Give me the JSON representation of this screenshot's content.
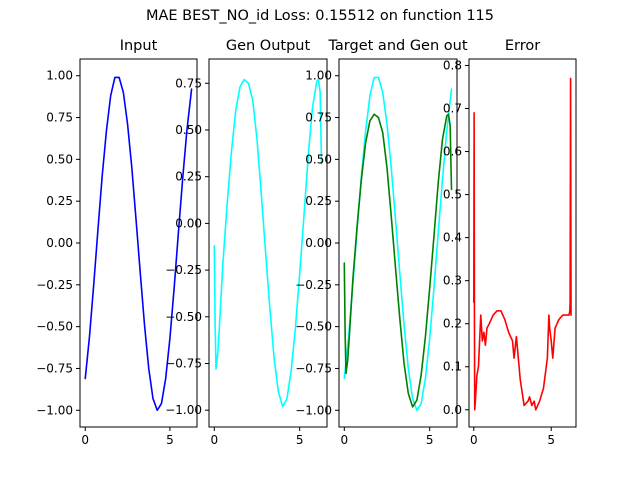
{
  "figure": {
    "suptitle": "MAE BEST_NO_id Loss: 0.15512 on function 115"
  },
  "colors": {
    "input": "#0000ff",
    "gen": "#00ffff",
    "target": "#008000",
    "error": "#ff0000",
    "axes": "#000000",
    "background": "#ffffff"
  },
  "chart_data": [
    {
      "type": "line",
      "title": "Input",
      "xlabel": "",
      "ylabel": "",
      "xlim": [
        -0.31,
        6.6
      ],
      "ylim": [
        -1.1,
        1.1
      ],
      "xticks": [
        0,
        5
      ],
      "xtick_labels": [
        "0",
        "5"
      ],
      "yticks": [
        -1.0,
        -0.75,
        -0.5,
        -0.25,
        0.0,
        0.25,
        0.5,
        0.75,
        1.0
      ],
      "ytick_labels": [
        "−1.00",
        "−0.75",
        "−0.50",
        "−0.25",
        "0.00",
        "0.25",
        "0.50",
        "0.75",
        "1.00"
      ],
      "series": [
        {
          "color": "#0000ff",
          "x": [
            0,
            0.25,
            0.5,
            0.75,
            1.0,
            1.25,
            1.5,
            1.75,
            2.0,
            2.25,
            2.5,
            2.75,
            3.0,
            3.25,
            3.5,
            3.75,
            4.0,
            4.25,
            4.5,
            4.75,
            5.0,
            5.25,
            5.5,
            5.75,
            6.0,
            6.28
          ],
          "y": [
            -0.81,
            -0.56,
            -0.25,
            0.08,
            0.4,
            0.67,
            0.88,
            0.99,
            0.99,
            0.9,
            0.71,
            0.45,
            0.14,
            -0.18,
            -0.49,
            -0.75,
            -0.93,
            -1.0,
            -0.96,
            -0.81,
            -0.57,
            -0.27,
            0.06,
            0.38,
            0.67,
            0.92
          ]
        }
      ],
      "grid": false
    },
    {
      "type": "line",
      "title": "Gen Output",
      "xlabel": "",
      "ylabel": "",
      "xlim": [
        -0.31,
        6.6
      ],
      "ylim": [
        -1.09,
        0.88
      ],
      "xticks": [
        0,
        5
      ],
      "xtick_labels": [
        "0",
        "5"
      ],
      "yticks": [
        -1.0,
        -0.75,
        -0.5,
        -0.25,
        0.0,
        0.25,
        0.5,
        0.75
      ],
      "ytick_labels": [
        "−1.00",
        "−0.75",
        "−0.50",
        "−0.25",
        "0.00",
        "0.25",
        "0.50",
        "0.75"
      ],
      "series": [
        {
          "color": "#00ffff",
          "x": [
            0,
            0.05,
            0.1,
            0.2,
            0.3,
            0.5,
            0.75,
            1.0,
            1.25,
            1.5,
            1.75,
            2.0,
            2.25,
            2.5,
            2.75,
            3.0,
            3.25,
            3.5,
            3.75,
            4.0,
            4.25,
            4.5,
            4.75,
            5.0,
            5.25,
            5.5,
            5.75,
            6.0,
            6.1,
            6.2,
            6.25,
            6.28
          ],
          "y": [
            -0.12,
            -0.55,
            -0.78,
            -0.7,
            -0.55,
            -0.22,
            0.1,
            0.38,
            0.6,
            0.73,
            0.77,
            0.75,
            0.66,
            0.45,
            0.16,
            -0.15,
            -0.45,
            -0.72,
            -0.9,
            -0.98,
            -0.94,
            -0.79,
            -0.56,
            -0.27,
            0.04,
            0.36,
            0.62,
            0.76,
            0.77,
            0.7,
            0.45,
            0.32
          ]
        }
      ],
      "grid": false
    },
    {
      "type": "line",
      "title": "Target and Gen out",
      "xlabel": "",
      "ylabel": "",
      "xlim": [
        -0.31,
        6.6
      ],
      "ylim": [
        -1.1,
        1.1
      ],
      "xticks": [
        0,
        5
      ],
      "xtick_labels": [
        "0",
        "5"
      ],
      "yticks": [
        -1.0,
        -0.75,
        -0.5,
        -0.25,
        0.0,
        0.25,
        0.5,
        0.75,
        1.0
      ],
      "ytick_labels": [
        "−1.00",
        "−0.75",
        "−0.50",
        "−0.25",
        "0.00",
        "0.25",
        "0.50",
        "0.75",
        "1.00"
      ],
      "series": [
        {
          "color": "#00ffff",
          "x": [
            0,
            0.25,
            0.5,
            0.75,
            1.0,
            1.25,
            1.5,
            1.75,
            2.0,
            2.25,
            2.5,
            2.75,
            3.0,
            3.25,
            3.5,
            3.75,
            4.0,
            4.25,
            4.5,
            4.75,
            5.0,
            5.25,
            5.5,
            5.75,
            6.0,
            6.28
          ],
          "y": [
            -0.81,
            -0.56,
            -0.25,
            0.08,
            0.4,
            0.67,
            0.88,
            0.99,
            0.99,
            0.9,
            0.71,
            0.45,
            0.14,
            -0.18,
            -0.49,
            -0.75,
            -0.93,
            -1.0,
            -0.96,
            -0.81,
            -0.57,
            -0.27,
            0.06,
            0.38,
            0.67,
            0.92
          ]
        },
        {
          "color": "#008000",
          "x": [
            0,
            0.05,
            0.1,
            0.2,
            0.3,
            0.5,
            0.75,
            1.0,
            1.25,
            1.5,
            1.75,
            2.0,
            2.25,
            2.5,
            2.75,
            3.0,
            3.25,
            3.5,
            3.75,
            4.0,
            4.25,
            4.5,
            4.75,
            5.0,
            5.25,
            5.5,
            5.75,
            6.0,
            6.1,
            6.2,
            6.25,
            6.28
          ],
          "y": [
            -0.12,
            -0.55,
            -0.78,
            -0.7,
            -0.55,
            -0.22,
            0.1,
            0.38,
            0.6,
            0.73,
            0.77,
            0.75,
            0.66,
            0.45,
            0.16,
            -0.15,
            -0.45,
            -0.72,
            -0.9,
            -0.98,
            -0.94,
            -0.79,
            -0.56,
            -0.27,
            0.04,
            0.36,
            0.62,
            0.76,
            0.77,
            0.7,
            0.45,
            0.32
          ]
        }
      ],
      "grid": false
    },
    {
      "type": "line",
      "title": "Error",
      "xlabel": "",
      "ylabel": "",
      "xlim": [
        -0.31,
        6.6
      ],
      "ylim": [
        -0.04,
        0.815
      ],
      "xticks": [
        0,
        5
      ],
      "xtick_labels": [
        "0",
        "5"
      ],
      "yticks": [
        0.0,
        0.1,
        0.2,
        0.3,
        0.4,
        0.5,
        0.6,
        0.7,
        0.8
      ],
      "ytick_labels": [
        "0.0",
        "0.1",
        "0.2",
        "0.3",
        "0.4",
        "0.5",
        "0.6",
        "0.7",
        "0.8"
      ],
      "series": [
        {
          "color": "#ff0000",
          "x": [
            0,
            0.02,
            0.04,
            0.06,
            0.1,
            0.2,
            0.3,
            0.45,
            0.55,
            0.65,
            0.75,
            0.85,
            1.0,
            1.25,
            1.5,
            1.75,
            2.0,
            2.25,
            2.5,
            2.6,
            2.75,
            2.9,
            3.0,
            3.25,
            3.5,
            3.6,
            3.75,
            3.9,
            4.0,
            4.25,
            4.5,
            4.75,
            4.8,
            4.85,
            4.9,
            5.0,
            5.1,
            5.25,
            5.5,
            5.75,
            6.0,
            6.15,
            6.2,
            6.22,
            6.25,
            6.28
          ],
          "y": [
            0.25,
            0.69,
            0.23,
            0.0,
            0.02,
            0.08,
            0.1,
            0.22,
            0.16,
            0.18,
            0.15,
            0.19,
            0.2,
            0.22,
            0.23,
            0.23,
            0.21,
            0.18,
            0.16,
            0.12,
            0.17,
            0.11,
            0.07,
            0.01,
            0.02,
            0.03,
            0.01,
            0.02,
            0.0,
            0.02,
            0.05,
            0.12,
            0.17,
            0.22,
            0.19,
            0.16,
            0.12,
            0.19,
            0.21,
            0.22,
            0.22,
            0.22,
            0.23,
            0.25,
            0.77,
            0.22
          ]
        }
      ],
      "grid": false
    }
  ]
}
